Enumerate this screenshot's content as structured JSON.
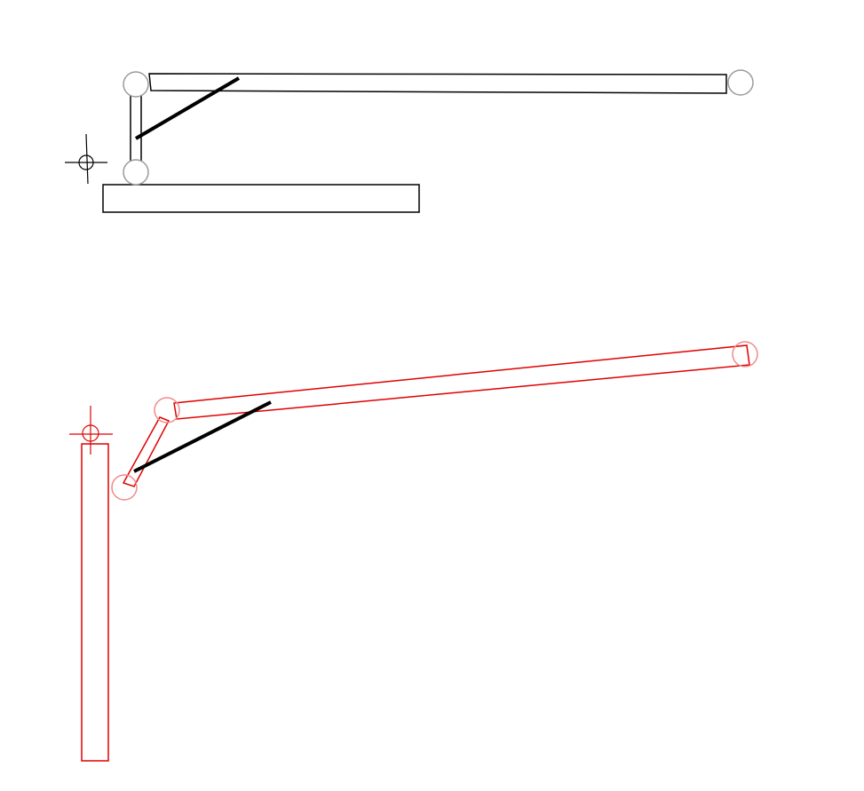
{
  "diagram": {
    "colors": {
      "reference_outline": "#000000",
      "reference_joint": "#9a9a9a",
      "simulated_outline": "#e00000",
      "simulated_joint": "#f08a8a",
      "drive_rod": "#000000",
      "background": "#ffffff"
    },
    "reference_pose": {
      "parts": [
        "base-bar",
        "long-arm",
        "short-link"
      ],
      "joints": [
        "left-pivot",
        "right-end-pivot",
        "lower-pivot"
      ],
      "rod": "drive-rod",
      "marker": "crosshair-icon"
    },
    "simulated_pose": {
      "parts": [
        "tall-post",
        "long-arm",
        "short-link"
      ],
      "joints": [
        "elbow-pivot",
        "tip-pivot",
        "lower-pivot"
      ],
      "rod": "drive-rod",
      "marker": "crosshair-icon"
    }
  }
}
